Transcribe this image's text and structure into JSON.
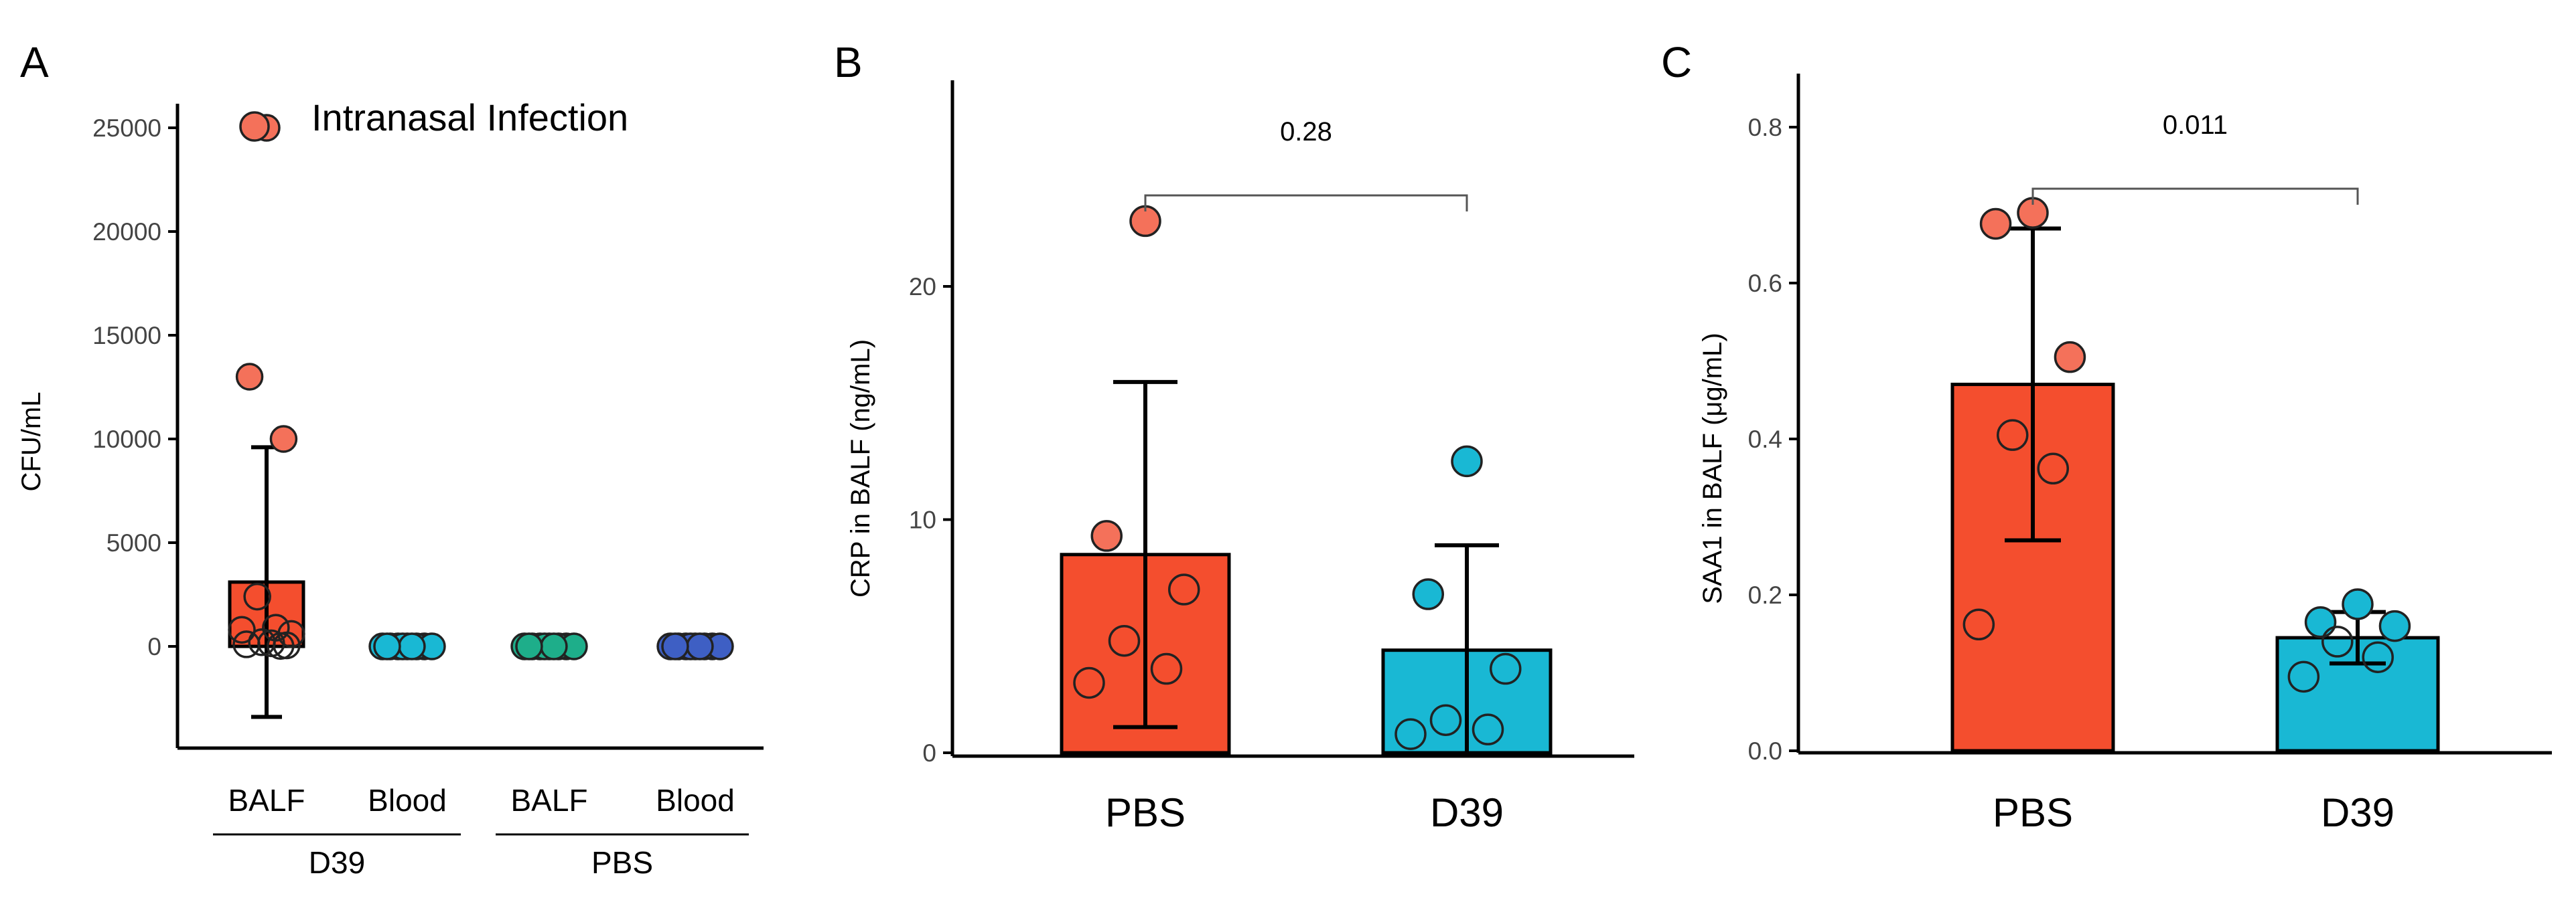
{
  "chart_data": [
    {
      "panel": "A",
      "type": "bar",
      "ylabel": "CFU/mL",
      "ylim": [
        -4000,
        27000
      ],
      "yticks": [
        0,
        5000,
        10000,
        15000,
        20000,
        25000
      ],
      "legend": {
        "label": "Intranasal Infection",
        "color": "#F4715A",
        "placement": "top"
      },
      "categories": [
        "BALF",
        "Blood",
        "BALF",
        "Blood"
      ],
      "groups": [
        {
          "label": "D39",
          "members": [
            0,
            1
          ]
        },
        {
          "label": "PBS",
          "members": [
            2,
            3
          ]
        }
      ],
      "series": [
        {
          "category": "BALF",
          "group": "D39",
          "color": "#F44E2E",
          "mean": 3100,
          "sd": 6500,
          "points": [
            25000,
            13000,
            10000,
            2400,
            900,
            800,
            600,
            200,
            150,
            100,
            50,
            20
          ],
          "point_color": "#F4715A"
        },
        {
          "category": "Blood",
          "group": "D39",
          "color": "#19B8D4",
          "mean": 0,
          "sd": 0,
          "points": [
            0,
            0,
            0,
            0,
            0,
            0,
            0,
            0,
            0,
            0
          ],
          "point_color": "#19B8D4"
        },
        {
          "category": "BALF",
          "group": "PBS",
          "color": "#1EAE8A",
          "mean": 0,
          "sd": 0,
          "points": [
            0,
            0,
            0,
            0,
            0,
            0,
            0,
            0,
            0,
            0
          ],
          "point_color": "#1EAE8A"
        },
        {
          "category": "Blood",
          "group": "PBS",
          "color": "#3E5FC4",
          "mean": 0,
          "sd": 0,
          "points": [
            0,
            0,
            0,
            0,
            0,
            0,
            0,
            0,
            0,
            0
          ],
          "point_color": "#3E5FC4"
        }
      ]
    },
    {
      "panel": "B",
      "type": "bar",
      "ylabel": "CRP in BALF (ng/mL)",
      "ylim": [
        0,
        29
      ],
      "yticks": [
        0,
        10,
        20
      ],
      "categories": [
        "PBS",
        "D39"
      ],
      "comparison": {
        "label": "0.28",
        "between": [
          0,
          1
        ]
      },
      "series": [
        {
          "category": "PBS",
          "color": "#F44E2E",
          "mean": 8.5,
          "sd": 7.4,
          "points": [
            22.8,
            9.3,
            7.0,
            4.8,
            3.6,
            3.0
          ],
          "point_color": "#F4715A"
        },
        {
          "category": "D39",
          "color": "#19B8D4",
          "mean": 4.4,
          "sd": 4.5,
          "points": [
            12.5,
            6.8,
            3.6,
            1.4,
            1.0,
            0.8
          ],
          "point_color": "#19B8D4"
        }
      ]
    },
    {
      "panel": "C",
      "type": "bar",
      "ylabel": "SAA1 in BALF (μg/mL)",
      "ylim": [
        0,
        0.87
      ],
      "yticks": [
        0.0,
        0.2,
        0.4,
        0.6,
        0.8
      ],
      "categories": [
        "PBS",
        "D39"
      ],
      "comparison": {
        "label": "0.011",
        "between": [
          0,
          1
        ]
      },
      "series": [
        {
          "category": "PBS",
          "color": "#F44E2E",
          "mean": 0.47,
          "sd": 0.2,
          "points": [
            0.69,
            0.676,
            0.505,
            0.405,
            0.362,
            0.162
          ],
          "point_color": "#F4715A"
        },
        {
          "category": "D39",
          "color": "#19B8D4",
          "mean": 0.145,
          "sd": 0.033,
          "points": [
            0.188,
            0.165,
            0.16,
            0.14,
            0.12,
            0.095
          ],
          "point_color": "#19B8D4"
        }
      ]
    }
  ]
}
